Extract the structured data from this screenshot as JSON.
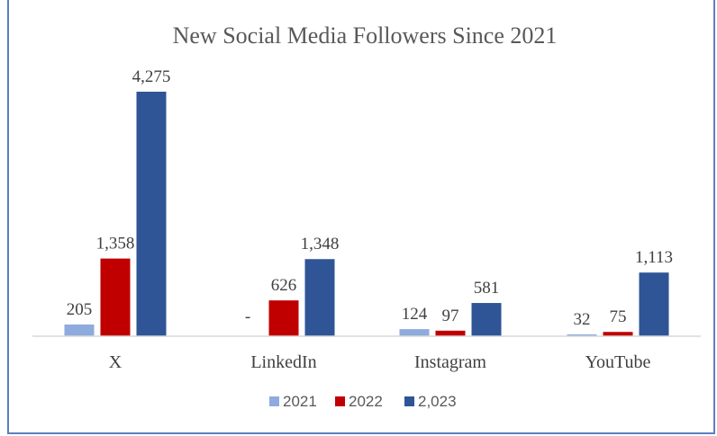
{
  "chart_data": {
    "type": "bar",
    "title": "New Social Media Followers Since 2021",
    "xlabel": "",
    "ylabel": "",
    "categories": [
      "X",
      "LinkedIn",
      "Instagram",
      "YouTube"
    ],
    "series": [
      {
        "name": "2021",
        "color": "#8faadc",
        "values": [
          205,
          0,
          124,
          32
        ],
        "labels": [
          "205",
          "-",
          "124",
          "32"
        ]
      },
      {
        "name": "2022",
        "color": "#c00000",
        "values": [
          1358,
          626,
          97,
          75
        ],
        "labels": [
          "1,358",
          "626",
          "97",
          "75"
        ]
      },
      {
        "name": "2,023",
        "color": "#2f5597",
        "values": [
          4275,
          1348,
          581,
          1113
        ],
        "labels": [
          "4,275",
          "1,348",
          "581",
          "1,113"
        ]
      }
    ],
    "ylim": [
      0,
      4275
    ],
    "grid": false,
    "legend_position": "bottom"
  }
}
